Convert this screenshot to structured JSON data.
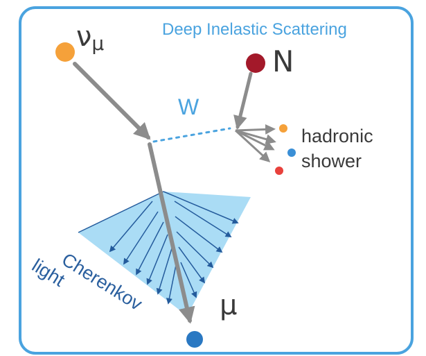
{
  "title": "Deep Inelastic Scattering",
  "labels": {
    "neutrino": "ν",
    "neutrino_sub": "μ",
    "nucleon": "N",
    "boson": "W",
    "hadronic_line1": "hadronic",
    "hadronic_line2": "shower",
    "cherenkov_line1": "Cherenkov",
    "cherenkov_line2": "light",
    "muon": "μ"
  },
  "colors": {
    "frame": "#4aa3df",
    "track": "#8c8c8c",
    "neutrino": "#f5a13a",
    "nucleon": "#a3192a",
    "muon": "#2a78c2",
    "cone": "#aadcf5",
    "cone_arrows": "#245b9c",
    "boson_line": "#4aa3df",
    "hadron_orange": "#f5a13a",
    "hadron_blue": "#3a8fd6",
    "hadron_red": "#e8413c"
  }
}
